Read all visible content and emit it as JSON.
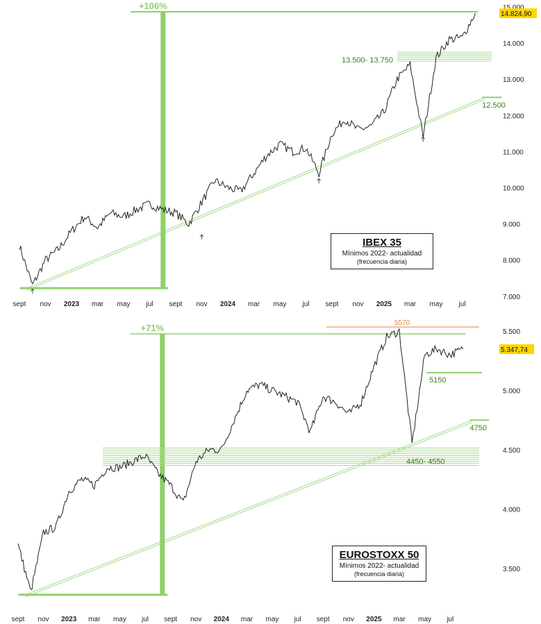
{
  "charts": [
    {
      "title": "IBEX 35",
      "subtitle": "Mínimos 2022- actualidad",
      "note": "(frecuencia diaria)",
      "current_value": "14.824,90",
      "performance_label": "+106%",
      "resistance_label": "13.500- 13.750",
      "trendline_label": "12.500",
      "x_labels": [
        "sept",
        "nov",
        "2023",
        "mar",
        "may",
        "jul",
        "sept",
        "nov",
        "2024",
        "mar",
        "may",
        "jul",
        "sept",
        "nov",
        "2025",
        "mar",
        "may",
        "jul"
      ],
      "y_tick_labels": [
        "15.000",
        "14.000",
        "13.000",
        "12.000",
        "11.000",
        "10.000",
        "9.000",
        "8.000",
        "7.000"
      ],
      "colors": {
        "line": "#222222",
        "band": "#8fd06a",
        "zone": "#a8dc8c",
        "label": "#3e7d1e",
        "highlight": "#ffd400"
      }
    },
    {
      "title": "EUROSTOXX 50",
      "subtitle": "Mínimos 2022- actualidad",
      "note": "(frecuencia diaria)",
      "current_value": "5.347,74",
      "performance_label": "+71%",
      "high_label": "5570",
      "support_label": "5150",
      "zone_label": "4450- 4550",
      "trendline_label": "4750",
      "x_labels": [
        "sept",
        "nov",
        "2023",
        "mar",
        "may",
        "jul",
        "sept",
        "nov",
        "2024",
        "mar",
        "may",
        "jul",
        "sept",
        "nov",
        "2025",
        "mar",
        "may",
        "jul"
      ],
      "y_tick_labels": [
        "5.500",
        "5.000",
        "4.500",
        "4.000",
        "3.500"
      ],
      "colors": {
        "line": "#222222",
        "band": "#8fd06a",
        "zone": "#a8dc8c",
        "label": "#3e7d1e",
        "high": "#e8833a",
        "highlight": "#ffd400"
      }
    }
  ],
  "chart_data": [
    {
      "type": "line",
      "title": "IBEX 35",
      "subtitle": "Mínimos 2022- actualidad",
      "frequency": "daily",
      "x": [
        "2022-09",
        "2022-10",
        "2022-11",
        "2022-12",
        "2023-01",
        "2023-02",
        "2023-03",
        "2023-04",
        "2023-05",
        "2023-06",
        "2023-07",
        "2023-08",
        "2023-09",
        "2023-10",
        "2023-11",
        "2023-12",
        "2024-01",
        "2024-02",
        "2024-03",
        "2024-04",
        "2024-05",
        "2024-06",
        "2024-07",
        "2024-08",
        "2024-09",
        "2024-10",
        "2024-11",
        "2024-12",
        "2025-01",
        "2025-02",
        "2025-03",
        "2025-04",
        "2025-05",
        "2025-06",
        "2025-07",
        "2025-08"
      ],
      "values": [
        8400,
        7300,
        8000,
        8300,
        8800,
        9200,
        8900,
        9300,
        9200,
        9400,
        9550,
        9400,
        9300,
        9000,
        9600,
        10200,
        10000,
        9900,
        10400,
        10900,
        11200,
        11000,
        11100,
        10400,
        11500,
        11900,
        11600,
        11700,
        12100,
        13000,
        13400,
        11400,
        13600,
        14100,
        14150,
        14825
      ],
      "ylim": [
        6900,
        15000
      ],
      "y_ticks": [
        7000,
        8000,
        9000,
        10000,
        11000,
        12000,
        13000,
        14000,
        15000
      ],
      "last_value": 14824.9,
      "annotations": {
        "gain_pct": "+106%",
        "resistance_zone": [
          13500,
          13750
        ],
        "trendline_value": 12500
      }
    },
    {
      "type": "line",
      "title": "EUROSTOXX 50",
      "subtitle": "Mínimos 2022- actualidad",
      "frequency": "daily",
      "x": [
        "2022-09",
        "2022-10",
        "2022-11",
        "2022-12",
        "2023-01",
        "2023-02",
        "2023-03",
        "2023-04",
        "2023-05",
        "2023-06",
        "2023-07",
        "2023-08",
        "2023-09",
        "2023-10",
        "2023-11",
        "2023-12",
        "2024-01",
        "2024-02",
        "2024-03",
        "2024-04",
        "2024-05",
        "2024-06",
        "2024-07",
        "2024-08",
        "2024-09",
        "2024-10",
        "2024-11",
        "2024-12",
        "2025-01",
        "2025-02",
        "2025-03",
        "2025-04",
        "2025-05",
        "2025-06",
        "2025-07",
        "2025-08"
      ],
      "values": [
        3700,
        3300,
        3800,
        3850,
        4150,
        4250,
        4200,
        4350,
        4350,
        4400,
        4450,
        4300,
        4200,
        4050,
        4400,
        4500,
        4500,
        4750,
        5000,
        5050,
        5000,
        4950,
        4900,
        4650,
        4950,
        4900,
        4800,
        4900,
        5200,
        5450,
        5500,
        4550,
        5300,
        5350,
        5300,
        5348
      ],
      "ylim": [
        3200,
        5600
      ],
      "y_ticks": [
        3500,
        4000,
        4500,
        5000,
        5500
      ],
      "last_value": 5347.74,
      "annotations": {
        "gain_pct": "+71%",
        "high": 5570,
        "support": 5150,
        "support_zone": [
          4450,
          4550
        ],
        "trendline_value": 4750
      }
    }
  ]
}
